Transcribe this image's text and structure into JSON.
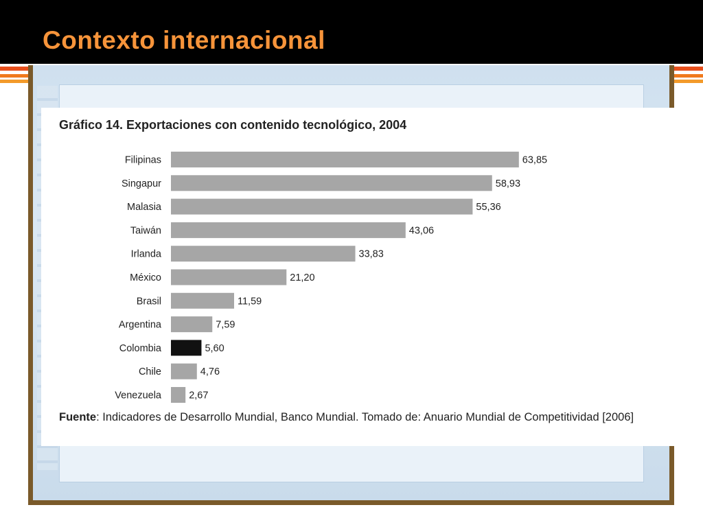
{
  "slide": {
    "title": "Contexto internacional"
  },
  "chart_data": {
    "type": "bar",
    "orientation": "horizontal",
    "title": "Gráfico 14. Exportaciones con contenido tecnológico, 2004",
    "xlabel": "",
    "ylabel": "",
    "categories": [
      "Filipinas",
      "Singapur",
      "Malasia",
      "Taiwán",
      "Irlanda",
      "México",
      "Brasil",
      "Argentina",
      "Colombia",
      "Chile",
      "Venezuela"
    ],
    "values": [
      63.85,
      58.93,
      55.36,
      43.06,
      33.83,
      21.2,
      11.59,
      7.59,
      5.6,
      4.76,
      2.67
    ],
    "value_labels": [
      "63,85",
      "58,93",
      "55,36",
      "43,06",
      "33,83",
      "21,20",
      "11,59",
      "7,59",
      "5,60",
      "4,76",
      "2,67"
    ],
    "xlim": [
      0,
      64
    ],
    "grid": false,
    "colors": {
      "default": "#a6a6a6",
      "highlight": "#111111"
    },
    "highlight_category": "Colombia"
  },
  "source": {
    "label": "Fuente",
    "text": ": Indicadores de Desarrollo Mundial, Banco Mundial. Tomado de: Anuario Mundial de Competitividad [2006]"
  }
}
